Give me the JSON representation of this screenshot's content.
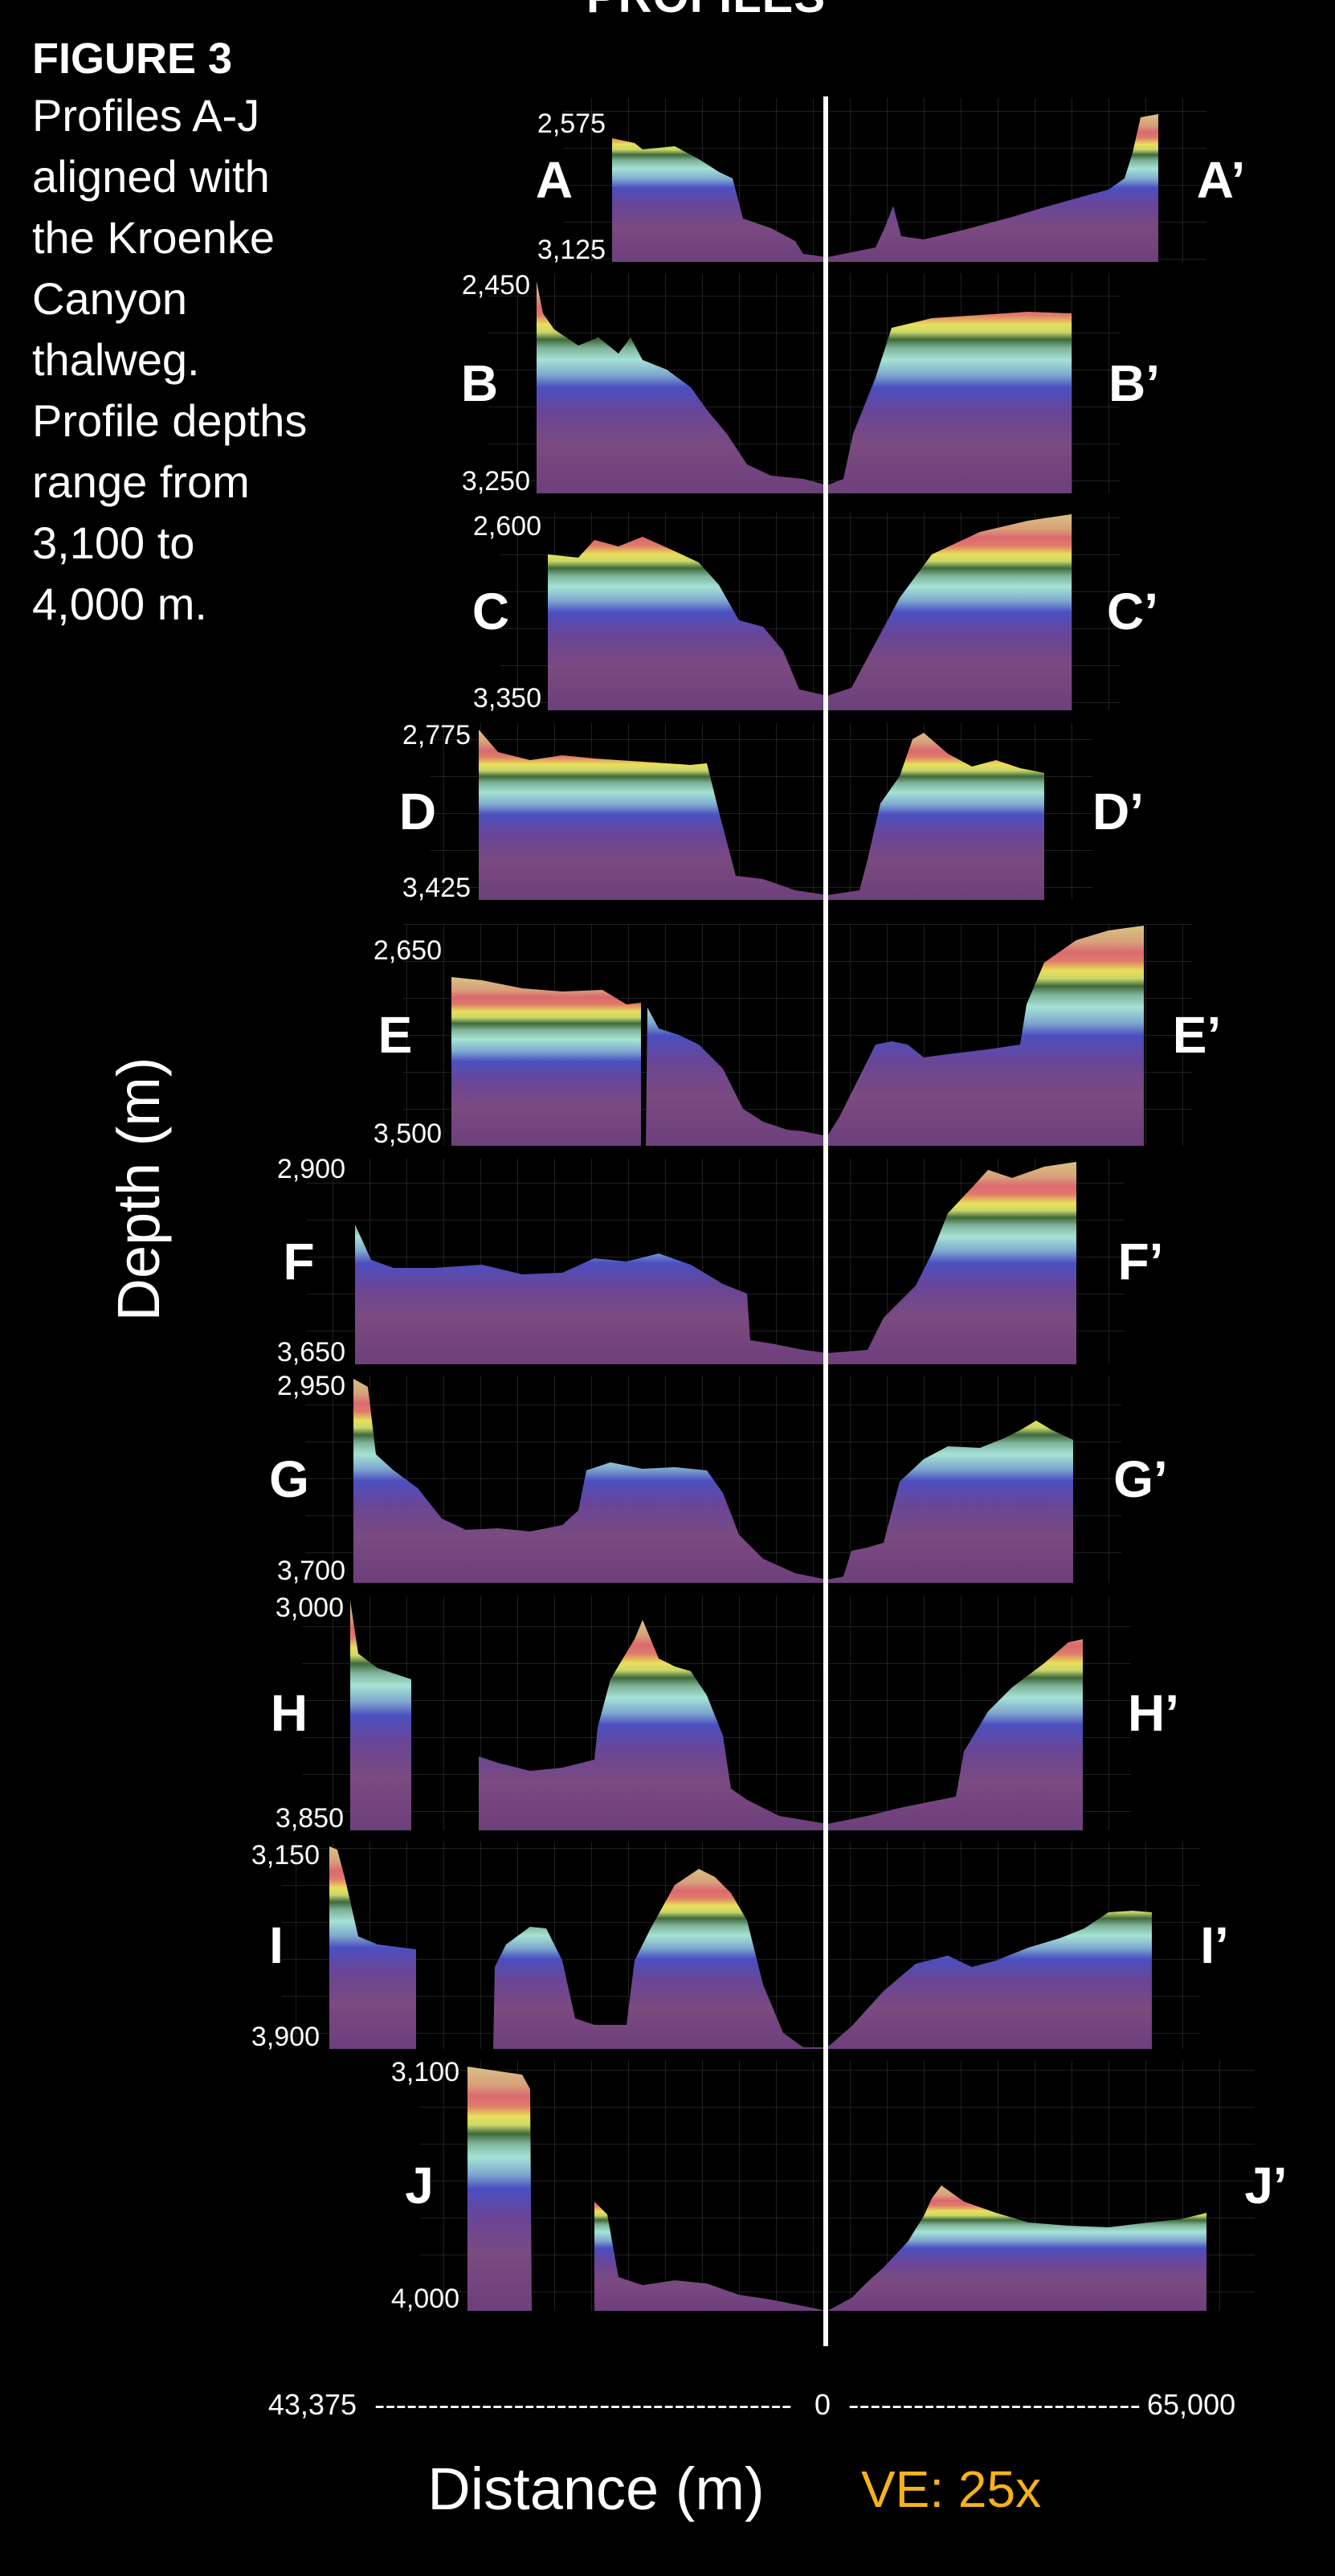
{
  "header": "PROFILES",
  "caption": {
    "title": "FIGURE 3",
    "lines": [
      "Profiles A-J",
      "aligned with",
      "the Kroenke",
      "Canyon",
      "thalweg.",
      "Profile depths",
      "range from",
      "3,100 to",
      "4,000 m."
    ]
  },
  "y_axis_label": "Depth (m)",
  "x_axis": {
    "label": "Distance (m)",
    "left_value": "43,375",
    "center_value": "0",
    "right_value": "65,000",
    "left_dashes": "---------------------------------------",
    "right_dashes": "---------------------------"
  },
  "vertical_exaggeration": "VE: 25x",
  "colors": {
    "background": "#000000",
    "ve_text": "#f5b21a",
    "thalweg_line": "#ffffff",
    "palette": [
      "#d8b97a",
      "#d96a6e",
      "#e9e25a",
      "#3f6e3b",
      "#9fdcd0",
      "#4b4fbf",
      "#6b3f8e"
    ]
  },
  "profiles": [
    {
      "label": "A",
      "end_label": "A’",
      "top_depth": "2,575",
      "bottom_depth": "3,125"
    },
    {
      "label": "B",
      "end_label": "B’",
      "top_depth": "2,450",
      "bottom_depth": "3,250"
    },
    {
      "label": "C",
      "end_label": "C’",
      "top_depth": "2,600",
      "bottom_depth": "3,350"
    },
    {
      "label": "D",
      "end_label": "D’",
      "top_depth": "2,775",
      "bottom_depth": "3,425"
    },
    {
      "label": "E",
      "end_label": "E’",
      "top_depth": "2,650",
      "bottom_depth": "3,500"
    },
    {
      "label": "F",
      "end_label": "F’",
      "top_depth": "2,900",
      "bottom_depth": "3,650"
    },
    {
      "label": "G",
      "end_label": "G’",
      "top_depth": "2,950",
      "bottom_depth": "3,700"
    },
    {
      "label": "H",
      "end_label": "H’",
      "top_depth": "3,000",
      "bottom_depth": "3,850"
    },
    {
      "label": "I",
      "end_label": "I’",
      "top_depth": "3,150",
      "bottom_depth": "3,900"
    },
    {
      "label": "J",
      "end_label": "J’",
      "top_depth": "3,100",
      "bottom_depth": "4,000"
    }
  ]
}
